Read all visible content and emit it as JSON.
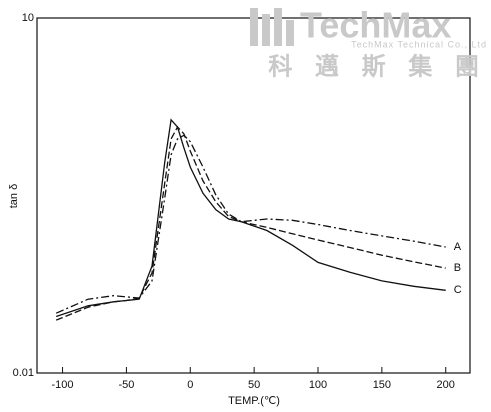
{
  "chart_data": {
    "type": "line",
    "ylabel": "tan δ",
    "xlabel": "TEMP.(℃)",
    "log_y": true,
    "xlim": [
      -120,
      219
    ],
    "ylim": [
      0.01,
      10
    ],
    "xticks": [
      -100,
      -50,
      0,
      50,
      100,
      150,
      200
    ],
    "yticks": [
      0.01,
      10
    ],
    "x": [
      -105,
      -80,
      -60,
      -50,
      -40,
      -30,
      -20,
      -15,
      -10,
      -5,
      0,
      10,
      20,
      30,
      40,
      60,
      80,
      100,
      125,
      150,
      175,
      200
    ],
    "series": [
      {
        "name": "A",
        "color": "#111111",
        "dash": "dashdot",
        "values": [
          0.032,
          0.042,
          0.045,
          0.044,
          0.043,
          0.06,
          0.3,
          0.7,
          0.95,
          1.02,
          0.9,
          0.55,
          0.32,
          0.22,
          0.19,
          0.2,
          0.195,
          0.18,
          0.16,
          0.144,
          0.13,
          0.116
        ]
      },
      {
        "name": "B",
        "color": "#111111",
        "dash": "dashed",
        "values": [
          0.028,
          0.036,
          0.04,
          0.041,
          0.043,
          0.07,
          0.4,
          0.95,
          1.2,
          1.05,
          0.75,
          0.42,
          0.28,
          0.21,
          0.19,
          0.17,
          0.15,
          0.133,
          0.115,
          0.099,
          0.087,
          0.077
        ]
      },
      {
        "name": "C",
        "color": "#111111",
        "dash": "solid",
        "values": [
          0.03,
          0.037,
          0.04,
          0.041,
          0.042,
          0.08,
          0.6,
          1.38,
          1.2,
          0.8,
          0.55,
          0.33,
          0.24,
          0.2,
          0.19,
          0.16,
          0.12,
          0.086,
          0.071,
          0.06,
          0.054,
          0.05
        ]
      }
    ]
  },
  "watermark": {
    "brand": "TechMax",
    "company": "TechMax Technical Co., Ltd",
    "chinese": "科 邁 斯 集 團"
  }
}
